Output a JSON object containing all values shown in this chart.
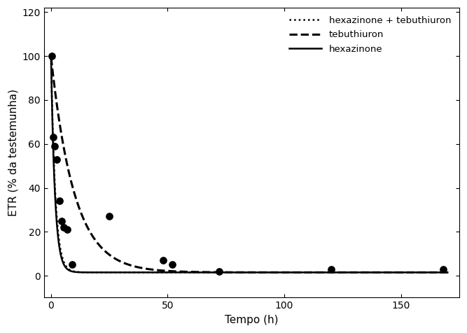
{
  "title": "",
  "xlabel": "Tempo (h)",
  "ylabel": "ETR (% da testemunha)",
  "xlim": [
    -3,
    175
  ],
  "ylim": [
    -10,
    122
  ],
  "yticks": [
    0,
    20,
    40,
    60,
    80,
    100,
    120
  ],
  "xticks": [
    0,
    50,
    100,
    150
  ],
  "scatter_x": [
    0.3,
    1.0,
    1.5,
    2.5,
    3.5,
    4.5,
    5.5,
    7.0,
    9.0,
    25,
    48,
    52,
    72,
    120,
    168
  ],
  "scatter_y": [
    100,
    63,
    59,
    53,
    34,
    25,
    22,
    21,
    5,
    27,
    7,
    5,
    2,
    3,
    3
  ],
  "background_color": "#ffffff",
  "line_color": "#000000",
  "scatter_color": "#000000",
  "legend_labels": [
    "hexazinone + tebuthiuron",
    "tebuthiuron",
    "hexazinone"
  ],
  "hex_a": 98.0,
  "hex_b": 0.6,
  "hex_c": 1.5,
  "teb_a": 98.0,
  "teb_b": 0.1,
  "teb_c": 1.5,
  "mix_a": 98.0,
  "mix_b": 0.55,
  "mix_c": 1.5
}
